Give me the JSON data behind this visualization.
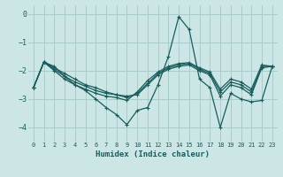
{
  "xlabel": "Humidex (Indice chaleur)",
  "ylabel": "",
  "bg_color": "#cce5e5",
  "grid_color": "#aacccc",
  "line_color": "#1a5c5c",
  "xlim": [
    -0.5,
    23.5
  ],
  "ylim": [
    -4.5,
    0.3
  ],
  "yticks": [
    0,
    -1,
    -2,
    -3,
    -4
  ],
  "xticks": [
    0,
    1,
    2,
    3,
    4,
    5,
    6,
    7,
    8,
    9,
    10,
    11,
    12,
    13,
    14,
    15,
    16,
    17,
    18,
    19,
    20,
    21,
    22,
    23
  ],
  "lines": [
    {
      "x": [
        0,
        1,
        2,
        3,
        4,
        5,
        6,
        7,
        8,
        9,
        10,
        11,
        12,
        13,
        14,
        15,
        16,
        17,
        18,
        19,
        20,
        21,
        22,
        23
      ],
      "y": [
        -2.6,
        -1.7,
        -1.85,
        -2.2,
        -2.5,
        -2.7,
        -3.0,
        -3.3,
        -3.55,
        -3.9,
        -3.4,
        -3.3,
        -2.5,
        -1.5,
        -0.1,
        -0.55,
        -2.3,
        -2.6,
        -4.0,
        -2.8,
        -3.0,
        -3.1,
        -3.05,
        -1.85
      ]
    },
    {
      "x": [
        0,
        1,
        2,
        3,
        4,
        5,
        6,
        7,
        8,
        9,
        10,
        11,
        12,
        13,
        14,
        15,
        16,
        17,
        18,
        19,
        20,
        21,
        22,
        23
      ],
      "y": [
        -2.6,
        -1.7,
        -1.9,
        -2.1,
        -2.3,
        -2.5,
        -2.6,
        -2.75,
        -2.85,
        -2.9,
        -2.85,
        -2.5,
        -2.15,
        -1.95,
        -1.85,
        -1.8,
        -2.0,
        -2.15,
        -2.9,
        -2.5,
        -2.6,
        -2.85,
        -1.9,
        -1.85
      ]
    },
    {
      "x": [
        0,
        1,
        2,
        3,
        4,
        5,
        6,
        7,
        8,
        9,
        10,
        11,
        12,
        13,
        14,
        15,
        16,
        17,
        18,
        19,
        20,
        21,
        22,
        23
      ],
      "y": [
        -2.6,
        -1.7,
        -1.95,
        -2.2,
        -2.4,
        -2.55,
        -2.7,
        -2.8,
        -2.85,
        -2.95,
        -2.8,
        -2.45,
        -2.1,
        -1.9,
        -1.8,
        -1.75,
        -1.95,
        -2.1,
        -2.75,
        -2.4,
        -2.5,
        -2.75,
        -1.85,
        -1.85
      ]
    },
    {
      "x": [
        0,
        1,
        2,
        3,
        4,
        5,
        6,
        7,
        8,
        9,
        10,
        11,
        12,
        13,
        14,
        15,
        16,
        17,
        18,
        19,
        20,
        21,
        22,
        23
      ],
      "y": [
        -2.6,
        -1.7,
        -2.0,
        -2.3,
        -2.5,
        -2.65,
        -2.8,
        -2.9,
        -2.95,
        -3.05,
        -2.75,
        -2.35,
        -2.05,
        -1.85,
        -1.75,
        -1.72,
        -1.9,
        -2.05,
        -2.65,
        -2.3,
        -2.4,
        -2.65,
        -1.8,
        -1.85
      ]
    }
  ]
}
